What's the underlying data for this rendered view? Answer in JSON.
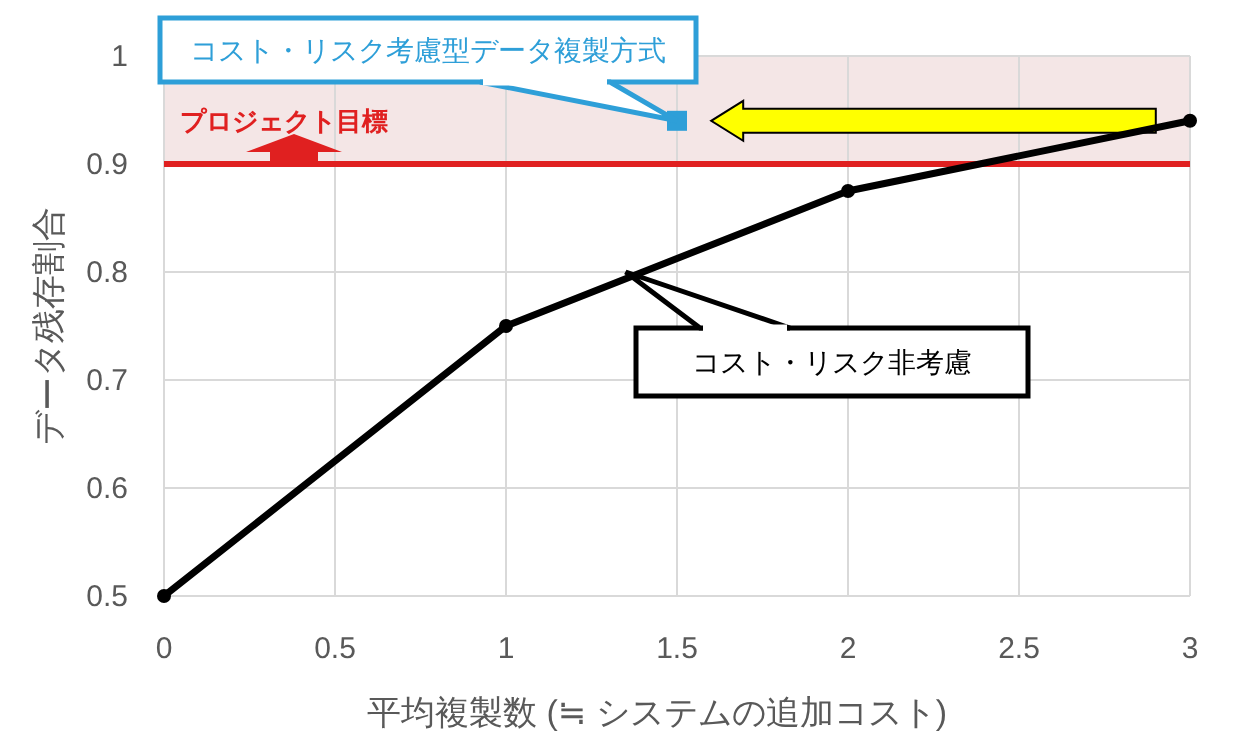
{
  "chart_data": {
    "type": "line",
    "xlabel": "平均複製数 (≒ システムの追加コスト)",
    "ylabel": "データ残存割合",
    "xlim": [
      0,
      3
    ],
    "xticks": [
      0,
      0.5,
      1,
      1.5,
      2,
      2.5,
      3
    ],
    "ylim": [
      0.5,
      1
    ],
    "yticks": [
      0.5,
      0.6,
      0.7,
      0.8,
      0.9,
      1
    ],
    "grid": true,
    "series": [
      {
        "type": "line",
        "color": "#000000",
        "marker": "circle",
        "x": [
          0,
          1,
          2,
          3
        ],
        "values": [
          0.5,
          0.75,
          0.875,
          0.94
        ]
      },
      {
        "type": "scatter",
        "color": "#2e9fd8",
        "marker": "square",
        "x": [
          1.5
        ],
        "values": [
          0.94
        ]
      }
    ],
    "ref_lines": [
      {
        "axis": "y",
        "value": 0.9,
        "label": "プロジェクト目標",
        "color": "#e02020"
      }
    ],
    "bands": [
      {
        "axis": "y",
        "from": 0.9,
        "to": 1,
        "color": "#f4e6e6"
      }
    ],
    "annotations": [
      {
        "text": "コスト・リスク考慮型データ複製方式",
        "x": 1.5,
        "y": 0.94
      },
      {
        "text": "コスト・リスク非考慮",
        "x": 1.35,
        "y": 0.8
      }
    ]
  }
}
